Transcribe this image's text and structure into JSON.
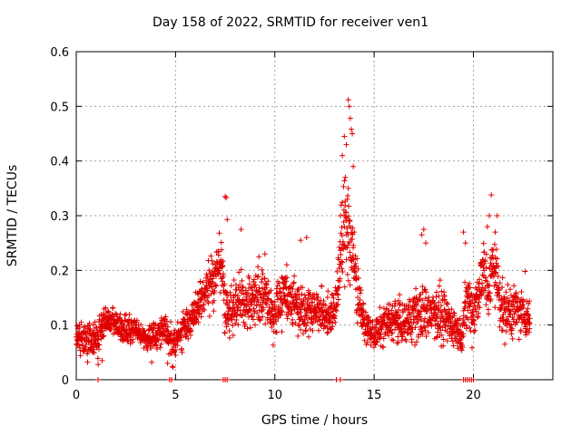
{
  "chart_data": {
    "type": "scatter",
    "title": "Day 158 of 2022, SRMTID for receiver ven1",
    "xlabel": "GPS time / hours",
    "ylabel": "SRMTID / TECUs",
    "xlim": [
      0,
      24
    ],
    "ylim": [
      0,
      0.6
    ],
    "xticks": [
      0,
      5,
      10,
      15,
      20
    ],
    "yticks": [
      0,
      0.1,
      0.2,
      0.3,
      0.4,
      0.5,
      0.6
    ],
    "grid": true,
    "marker": "+",
    "color": "#e00000",
    "series_shape": [
      [
        0.0,
        0.08,
        0.02
      ],
      [
        0.5,
        0.07,
        0.025
      ],
      [
        1.0,
        0.075,
        0.025
      ],
      [
        1.2,
        0.09,
        0.03
      ],
      [
        1.5,
        0.11,
        0.02
      ],
      [
        2.0,
        0.1,
        0.02
      ],
      [
        2.5,
        0.09,
        0.02
      ],
      [
        3.0,
        0.09,
        0.02
      ],
      [
        3.5,
        0.075,
        0.015
      ],
      [
        4.0,
        0.08,
        0.02
      ],
      [
        4.5,
        0.1,
        0.02
      ],
      [
        4.8,
        0.06,
        0.03
      ],
      [
        5.0,
        0.07,
        0.02
      ],
      [
        5.5,
        0.1,
        0.03
      ],
      [
        6.0,
        0.12,
        0.03
      ],
      [
        6.5,
        0.16,
        0.03
      ],
      [
        7.0,
        0.19,
        0.04
      ],
      [
        7.3,
        0.22,
        0.04
      ],
      [
        7.5,
        0.12,
        0.04
      ],
      [
        8.0,
        0.14,
        0.04
      ],
      [
        8.5,
        0.14,
        0.04
      ],
      [
        9.0,
        0.15,
        0.04
      ],
      [
        9.5,
        0.15,
        0.04
      ],
      [
        10.0,
        0.12,
        0.04
      ],
      [
        10.5,
        0.16,
        0.04
      ],
      [
        11.0,
        0.14,
        0.04
      ],
      [
        11.5,
        0.13,
        0.04
      ],
      [
        12.0,
        0.13,
        0.03
      ],
      [
        12.5,
        0.12,
        0.03
      ],
      [
        13.0,
        0.12,
        0.03
      ],
      [
        13.3,
        0.22,
        0.06
      ],
      [
        13.6,
        0.3,
        0.09
      ],
      [
        13.8,
        0.25,
        0.07
      ],
      [
        14.1,
        0.18,
        0.05
      ],
      [
        14.5,
        0.1,
        0.02
      ],
      [
        15.0,
        0.08,
        0.02
      ],
      [
        15.5,
        0.1,
        0.03
      ],
      [
        16.0,
        0.11,
        0.03
      ],
      [
        16.5,
        0.1,
        0.03
      ],
      [
        17.0,
        0.12,
        0.04
      ],
      [
        17.5,
        0.12,
        0.04
      ],
      [
        18.0,
        0.13,
        0.04
      ],
      [
        18.5,
        0.11,
        0.04
      ],
      [
        19.0,
        0.1,
        0.03
      ],
      [
        19.4,
        0.08,
        0.02
      ],
      [
        19.7,
        0.15,
        0.05
      ],
      [
        20.0,
        0.12,
        0.04
      ],
      [
        20.5,
        0.2,
        0.05
      ],
      [
        20.8,
        0.16,
        0.05
      ],
      [
        21.0,
        0.22,
        0.05
      ],
      [
        21.5,
        0.12,
        0.04
      ],
      [
        22.0,
        0.13,
        0.04
      ],
      [
        22.5,
        0.12,
        0.03
      ],
      [
        22.8,
        0.11,
        0.03
      ]
    ],
    "extra_points": [
      [
        7.5,
        0.335
      ],
      [
        7.55,
        0.333
      ],
      [
        7.6,
        0.293
      ],
      [
        7.2,
        0.268
      ],
      [
        8.3,
        0.275
      ],
      [
        13.7,
        0.512
      ],
      [
        13.75,
        0.5
      ],
      [
        13.8,
        0.478
      ],
      [
        13.85,
        0.458
      ],
      [
        13.9,
        0.45
      ],
      [
        13.5,
        0.445
      ],
      [
        13.6,
        0.43
      ],
      [
        13.4,
        0.41
      ],
      [
        13.95,
        0.39
      ],
      [
        13.55,
        0.37
      ],
      [
        13.7,
        0.35
      ],
      [
        13.65,
        0.33
      ],
      [
        13.3,
        0.3
      ],
      [
        13.5,
        0.28
      ],
      [
        14.0,
        0.27
      ],
      [
        11.3,
        0.255
      ],
      [
        11.6,
        0.26
      ],
      [
        17.4,
        0.265
      ],
      [
        17.5,
        0.275
      ],
      [
        17.6,
        0.25
      ],
      [
        19.5,
        0.27
      ],
      [
        19.6,
        0.25
      ],
      [
        20.9,
        0.338
      ],
      [
        20.8,
        0.3
      ],
      [
        21.1,
        0.27
      ],
      [
        20.7,
        0.28
      ],
      [
        21.2,
        0.3
      ],
      [
        1.1,
        0.028
      ],
      [
        1.3,
        0.035
      ],
      [
        3.8,
        0.032
      ],
      [
        4.6,
        0.03
      ],
      [
        9.2,
        0.225
      ],
      [
        9.5,
        0.23
      ],
      [
        10.6,
        0.21
      ],
      [
        22.6,
        0.198
      ]
    ],
    "zero_points": [
      1.1,
      4.7,
      4.8,
      7.4,
      7.5,
      7.6,
      13.1,
      13.3,
      19.5,
      19.6,
      19.7,
      19.8,
      19.9,
      20.0
    ]
  }
}
